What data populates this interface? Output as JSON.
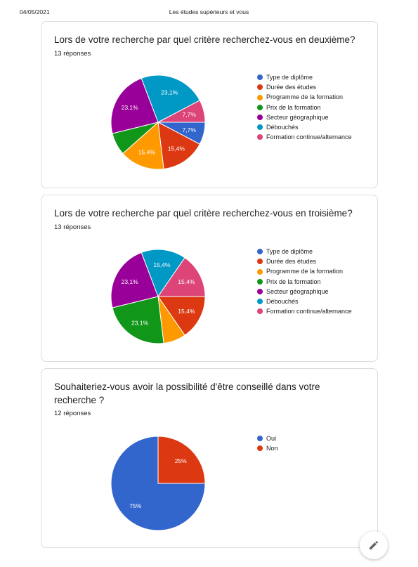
{
  "header": {
    "date": "04/05/2021",
    "title": "Les études supérieurs et vous"
  },
  "charts": [
    {
      "question": "Lors de votre recherche par quel critère recherchez-vous en deuxième?",
      "responses": "13 réponses",
      "legend": [
        {
          "label": "Type de diplôme",
          "color": "#3366cc"
        },
        {
          "label": "Durée des études",
          "color": "#dc3912"
        },
        {
          "label": "Programme de la formation",
          "color": "#ff9900"
        },
        {
          "label": "Prix de la formation",
          "color": "#109618"
        },
        {
          "label": "Secteur géographique",
          "color": "#990099"
        },
        {
          "label": "Débouchés",
          "color": "#0099c6"
        },
        {
          "label": "Formation continue/alternance",
          "color": "#dd4477"
        }
      ]
    },
    {
      "question": "Lors de votre recherche par quel critère recherchez-vous en troisième?",
      "responses": "13 réponses",
      "legend": [
        {
          "label": "Type de diplôme",
          "color": "#3366cc"
        },
        {
          "label": "Durée des études",
          "color": "#dc3912"
        },
        {
          "label": "Programme de la formation",
          "color": "#ff9900"
        },
        {
          "label": "Prix de la formation",
          "color": "#109618"
        },
        {
          "label": "Secteur géographique",
          "color": "#990099"
        },
        {
          "label": "Débouchés",
          "color": "#0099c6"
        },
        {
          "label": "Formation continue/alternance",
          "color": "#dd4477"
        }
      ]
    },
    {
      "question": "Souhaiteriez-vous avoir la possibilité d'être conseillé dans votre recherche ?",
      "responses": "12 réponses",
      "legend": [
        {
          "label": "Oui",
          "color": "#3366cc"
        },
        {
          "label": "Non",
          "color": "#dc3912"
        }
      ]
    }
  ],
  "chart_data": [
    {
      "type": "pie",
      "title": "Lors de votre recherche par quel critère recherchez-vous en deuxième?",
      "categories": [
        "Type de diplôme",
        "Durée des études",
        "Programme de la formation",
        "Prix de la formation",
        "Secteur géographique",
        "Débouchés",
        "Formation continue/alternance"
      ],
      "values": [
        7.7,
        15.4,
        15.4,
        7.7,
        23.1,
        23.1,
        7.7
      ],
      "labels": [
        "7,7%",
        "15,4%",
        "15,4%",
        "",
        "23,1%",
        "23,1%",
        "7,7%"
      ],
      "colors": [
        "#3366cc",
        "#dc3912",
        "#ff9900",
        "#109618",
        "#990099",
        "#0099c6",
        "#dd4477"
      ],
      "legend_position": "right"
    },
    {
      "type": "pie",
      "title": "Lors de votre recherche par quel critère recherchez-vous en troisième?",
      "categories": [
        "Type de diplôme",
        "Durée des études",
        "Programme de la formation",
        "Prix de la formation",
        "Secteur géographique",
        "Débouchés",
        "Formation continue/alternance"
      ],
      "values": [
        0,
        15.4,
        7.7,
        23.1,
        23.1,
        15.4,
        15.4
      ],
      "labels": [
        "",
        "15,4%",
        "",
        "23,1%",
        "23,1%",
        "15,4%",
        "15,4%"
      ],
      "colors": [
        "#3366cc",
        "#dc3912",
        "#ff9900",
        "#109618",
        "#990099",
        "#0099c6",
        "#dd4477"
      ],
      "legend_position": "right"
    },
    {
      "type": "pie",
      "title": "Souhaiteriez-vous avoir la possibilité d'être conseillé dans votre recherche ?",
      "categories": [
        "Oui",
        "Non"
      ],
      "values": [
        75,
        25
      ],
      "labels": [
        "75%",
        "25%"
      ],
      "colors": [
        "#3366cc",
        "#dc3912"
      ],
      "legend_position": "right"
    }
  ]
}
